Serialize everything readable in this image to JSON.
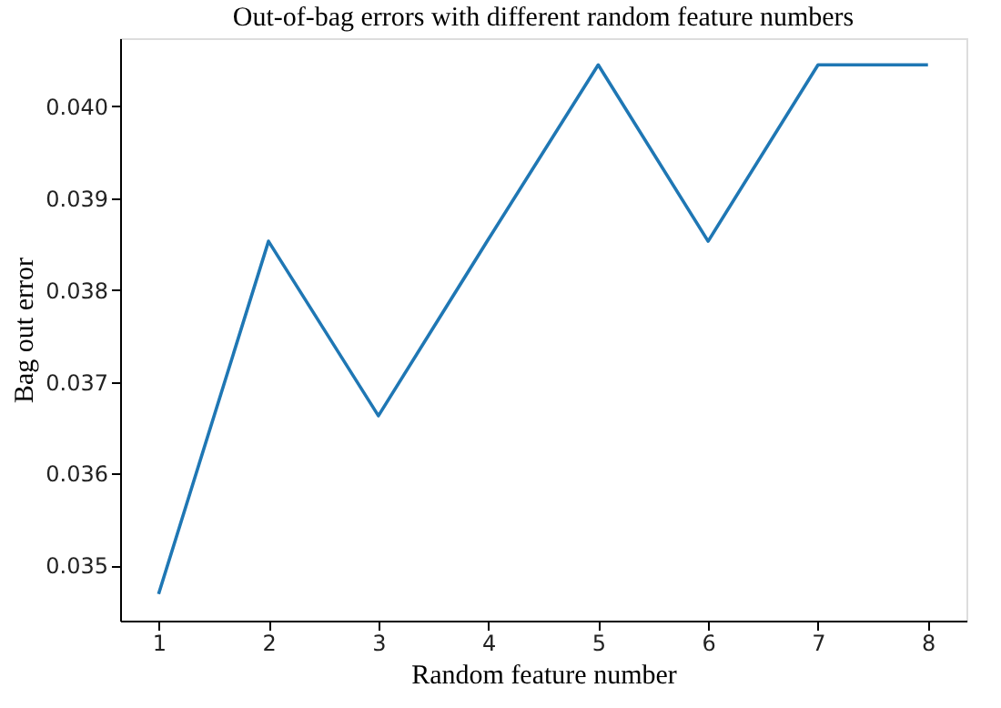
{
  "chart_data": {
    "type": "line",
    "title": "Out-of-bag errors with different random feature numbers",
    "xlabel": "Random feature number",
    "ylabel": "Bag out error",
    "x": [
      1,
      2,
      3,
      4,
      5,
      6,
      7,
      8
    ],
    "series": [
      {
        "color": "#1f77b4",
        "values": [
          0.03469,
          0.03853,
          0.03663,
          0.03855,
          0.04045,
          0.03853,
          0.04045,
          0.04045
        ]
      }
    ],
    "xlim": [
      0.65,
      8.35
    ],
    "ylim": [
      0.0344,
      0.04074
    ],
    "xticks": [
      1,
      2,
      3,
      4,
      5,
      6,
      7,
      8
    ],
    "yticks": [
      0.035,
      0.036,
      0.037,
      0.038,
      0.039,
      {
        "value": 0.04,
        "label": "0.040"
      }
    ],
    "grid": false,
    "legend": false,
    "marker": "none",
    "line_style": "solid"
  }
}
